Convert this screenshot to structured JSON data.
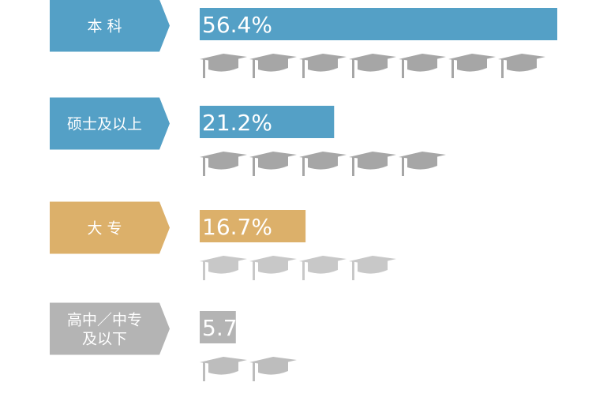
{
  "chart_data": {
    "type": "bar",
    "categories": [
      "本 科",
      "硕士及以上",
      "大 专",
      "高中／中专及以下"
    ],
    "label_lines": [
      [
        "本 科"
      ],
      [
        "硕士及以上"
      ],
      [
        "大 专"
      ],
      [
        "高中／中专",
        "及以下"
      ]
    ],
    "values": [
      56.4,
      21.2,
      16.7,
      5.7
    ],
    "value_labels": [
      "56.4%",
      "21.2%",
      "16.7%",
      "5.7%"
    ],
    "icon_counts": [
      7,
      5,
      4,
      2
    ],
    "icon_name": "graduation-cap-icon",
    "colors": [
      "#54a0c6",
      "#54a0c6",
      "#dcb06a",
      "#b4b4b4"
    ],
    "cap_colors": [
      "#a6a6a6",
      "#a6a6a6",
      "#c8c8c8",
      "#bdbdbd"
    ],
    "xlim": [
      0,
      56.4
    ]
  }
}
